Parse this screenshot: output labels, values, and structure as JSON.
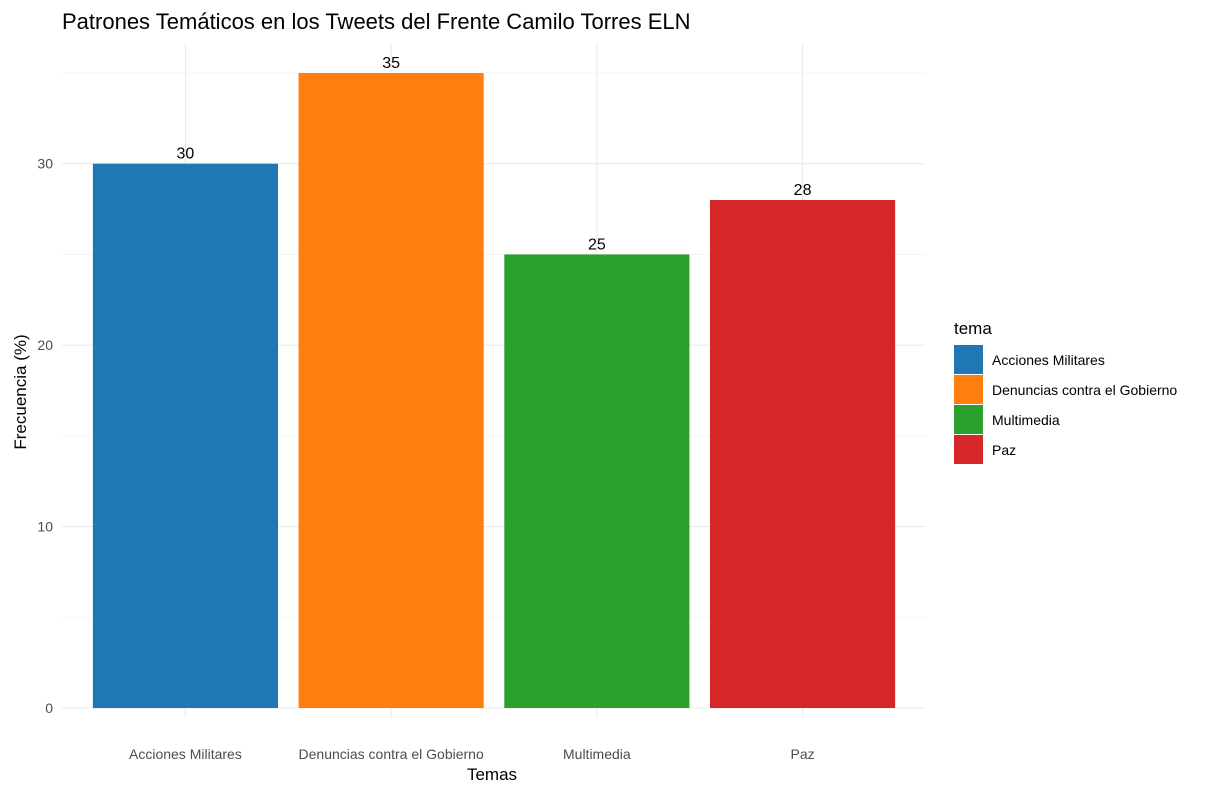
{
  "chart_data": {
    "type": "bar",
    "title": "Patrones Temáticos en los Tweets del Frente Camilo Torres ELN",
    "xlabel": "Temas",
    "ylabel": "Frecuencia (%)",
    "categories": [
      "Acciones Militares",
      "Denuncias contra el Gobierno",
      "Multimedia",
      "Paz"
    ],
    "values": [
      30,
      35,
      25,
      28
    ],
    "colors": [
      "#1f77b4",
      "#ff7f0e",
      "#2ca02c",
      "#d62728"
    ],
    "ylim": [
      0,
      35
    ],
    "yticks": [
      0,
      10,
      20,
      30
    ],
    "grid": true,
    "legend": {
      "title": "tema",
      "position": "right",
      "items": [
        "Acciones Militares",
        "Denuncias contra el Gobierno",
        "Multimedia",
        "Paz"
      ]
    }
  }
}
